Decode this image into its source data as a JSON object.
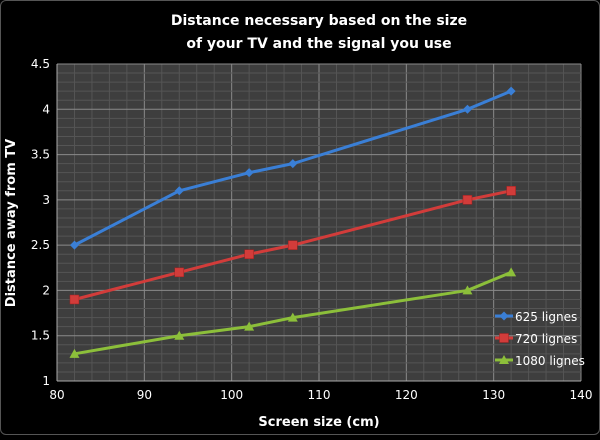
{
  "chart_data": {
    "type": "line",
    "title_lines": [
      "Distance necessary based on the size",
      "of your TV and the signal you use"
    ],
    "xlabel": "Screen size (cm)",
    "ylabel": "Distance away from TV",
    "xlim": [
      80,
      140
    ],
    "ylim": [
      1,
      4.5
    ],
    "x_ticks": [
      "80",
      "90",
      "100",
      "110",
      "120",
      "130",
      "140"
    ],
    "y_ticks": [
      "1",
      "1.5",
      "2",
      "2.5",
      "3",
      "3.5",
      "4",
      "4.5"
    ],
    "grid": true,
    "legend_position": "bottom-right",
    "x": [
      82,
      94,
      102,
      107,
      127,
      132
    ],
    "series": [
      {
        "name": "625 lignes",
        "color": "#3a7fd6",
        "marker": "diamond",
        "values": [
          2.5,
          3.1,
          3.3,
          3.4,
          4.0,
          4.2
        ]
      },
      {
        "name": "720 lignes",
        "color": "#d23c3a",
        "marker": "square",
        "values": [
          1.9,
          2.2,
          2.4,
          2.5,
          3.0,
          3.1
        ]
      },
      {
        "name": "1080 lignes",
        "color": "#8cbf3a",
        "marker": "triangle",
        "values": [
          1.3,
          1.5,
          1.6,
          1.7,
          2.0,
          2.2
        ]
      }
    ]
  }
}
